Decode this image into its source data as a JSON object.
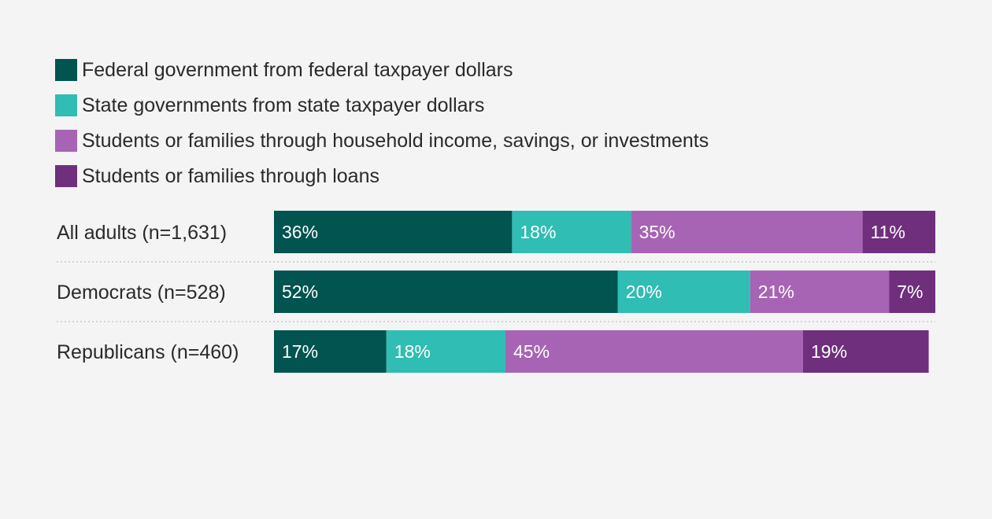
{
  "chart_data": {
    "type": "bar",
    "orientation": "horizontal",
    "stacked": true,
    "categories": [
      "All adults (n=1,631)",
      "Democrats (n=528)",
      "Republicans (n=460)"
    ],
    "series": [
      {
        "name": "Federal government from federal taxpayer dollars",
        "color": "#015450",
        "values": [
          36,
          52,
          17
        ]
      },
      {
        "name": "State governments from state taxpayer dollars",
        "color": "#30bdb3",
        "values": [
          18,
          20,
          18
        ]
      },
      {
        "name": "Students or families through household income, savings, or investments",
        "color": "#a764b4",
        "values": [
          35,
          21,
          45
        ]
      },
      {
        "name": "Students or families through loans",
        "color": "#6f2f7c",
        "values": [
          11,
          7,
          19
        ]
      }
    ],
    "value_suffix": "%",
    "xlim": [
      0,
      100
    ],
    "legend": "top-left",
    "grid": false
  }
}
